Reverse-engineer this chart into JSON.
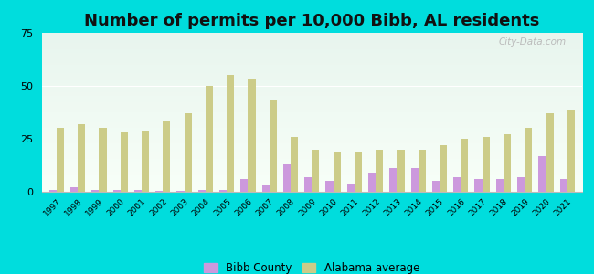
{
  "title": "Number of permits per 10,000 Bibb, AL residents",
  "years": [
    1997,
    1998,
    1999,
    2000,
    2001,
    2002,
    2003,
    2004,
    2005,
    2006,
    2007,
    2008,
    2009,
    2010,
    2011,
    2012,
    2013,
    2014,
    2015,
    2016,
    2017,
    2018,
    2019,
    2020,
    2021
  ],
  "bibb_county": [
    1,
    2,
    1,
    1,
    1,
    0.5,
    0.5,
    1,
    1,
    6,
    3,
    13,
    7,
    5,
    4,
    9,
    11,
    11,
    5,
    7,
    6,
    6,
    7,
    17,
    6
  ],
  "alabama_avg": [
    30,
    32,
    30,
    28,
    29,
    33,
    37,
    50,
    55,
    53,
    43,
    26,
    20,
    19,
    19,
    20,
    20,
    20,
    22,
    25,
    26,
    27,
    30,
    37,
    39
  ],
  "bibb_color": "#cc99dd",
  "alabama_color": "#cccc88",
  "outer_bg": "#00dddd",
  "ylim": [
    0,
    75
  ],
  "yticks": [
    0,
    25,
    50,
    75
  ],
  "title_fontsize": 13,
  "legend_bibb": "Bibb County",
  "legend_alabama": "Alabama average"
}
